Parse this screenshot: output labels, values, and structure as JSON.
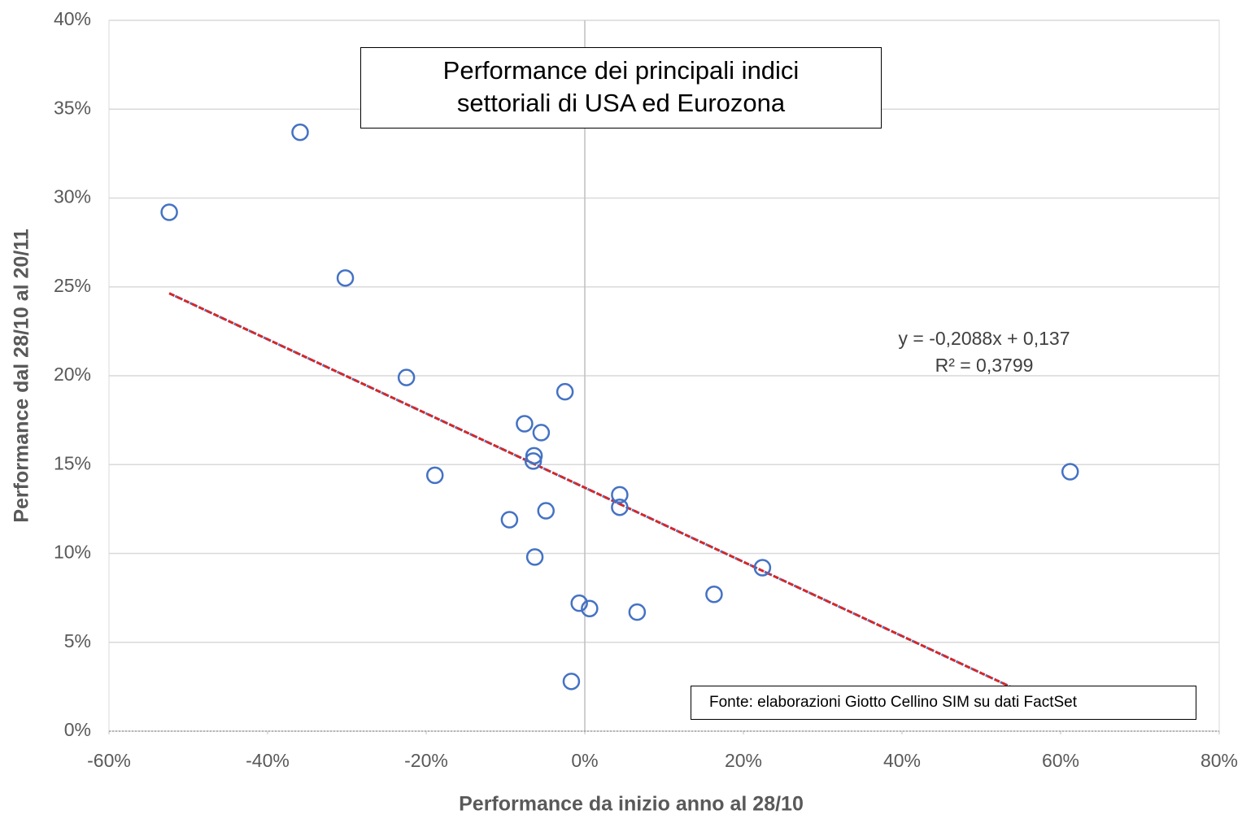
{
  "chart_data": {
    "type": "scatter",
    "title": [
      "Performance dei principali indici",
      "settoriali di USA ed Eurozona"
    ],
    "x_label": "Performance da inizio anno al 28/10",
    "y_label": "Performance dal 28/10 al 20/11",
    "annotations": [
      "y = -0,2088x + 0,137",
      "R² = 0,3799"
    ],
    "source": "Fonte: elaborazioni Giotto Cellino SIM su dati FactSet",
    "xlim": [
      -60,
      80
    ],
    "ylim": [
      0,
      40
    ],
    "xticks": [
      {
        "value": -60,
        "label": "-60%"
      },
      {
        "value": -40,
        "label": "-40%"
      },
      {
        "value": -20,
        "label": "-20%"
      },
      {
        "value": 0,
        "label": "0%"
      },
      {
        "value": 20,
        "label": "20%"
      },
      {
        "value": 40,
        "label": "40%"
      },
      {
        "value": 60,
        "label": "60%"
      },
      {
        "value": 80,
        "label": "80%"
      }
    ],
    "yticks": [
      {
        "value": 0,
        "label": "0%"
      },
      {
        "value": 5,
        "label": "5%"
      },
      {
        "value": 10,
        "label": "10%"
      },
      {
        "value": 15,
        "label": "15%"
      },
      {
        "value": 20,
        "label": "20%"
      },
      {
        "value": 25,
        "label": "25%"
      },
      {
        "value": 30,
        "label": "30%"
      },
      {
        "value": 35,
        "label": "35%"
      },
      {
        "value": 40,
        "label": "40%"
      }
    ],
    "grid": true,
    "color": "#4472c4",
    "x": [
      -52.4,
      -35.9,
      -30.2,
      -22.5,
      -18.9,
      -2.5,
      -7.6,
      -5.5,
      -6.4,
      -6.5,
      -4.9,
      -9.5,
      -6.3,
      4.4,
      4.4,
      -0.7,
      0.6,
      6.6,
      16.3,
      22.4,
      -1.7,
      61.2
    ],
    "values": [
      29.2,
      33.7,
      25.5,
      19.9,
      14.4,
      19.1,
      17.3,
      16.8,
      15.5,
      15.2,
      12.4,
      11.9,
      9.8,
      13.3,
      12.6,
      7.2,
      6.9,
      6.7,
      7.7,
      9.2,
      2.8,
      14.6
    ],
    "trendline": {
      "x": [
        -52.4,
        58.5
      ],
      "values": [
        24.64,
        1.49
      ],
      "color": "#d62728"
    }
  }
}
